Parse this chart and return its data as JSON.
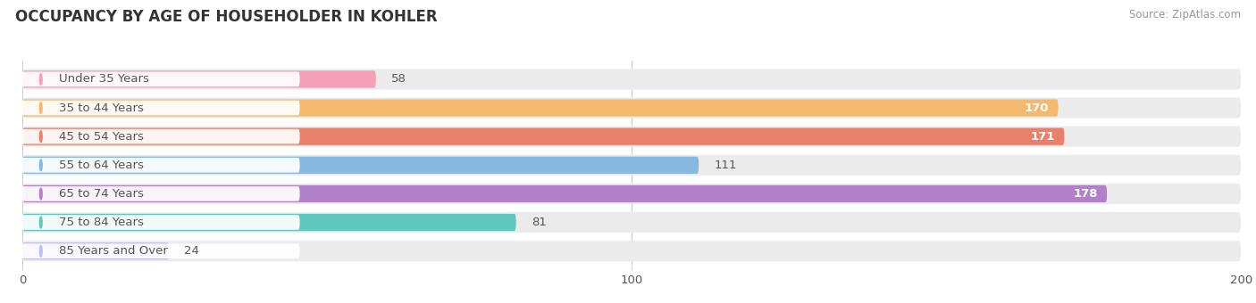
{
  "title": "OCCUPANCY BY AGE OF HOUSEHOLDER IN KOHLER",
  "source": "Source: ZipAtlas.com",
  "categories": [
    "Under 35 Years",
    "35 to 44 Years",
    "45 to 54 Years",
    "55 to 64 Years",
    "65 to 74 Years",
    "75 to 84 Years",
    "85 Years and Over"
  ],
  "values": [
    58,
    170,
    171,
    111,
    178,
    81,
    24
  ],
  "bar_colors": [
    "#f5a0b8",
    "#f5b96e",
    "#e8806a",
    "#87b8e0",
    "#b080c8",
    "#5ec8c0",
    "#c0c0f0"
  ],
  "bar_bg_color": "#ebebeb",
  "xlim": [
    0,
    200
  ],
  "xticks": [
    0,
    100,
    200
  ],
  "title_fontsize": 12,
  "label_fontsize": 9.5,
  "value_fontsize": 9.5,
  "bar_height": 0.72,
  "bg_color": "#ffffff",
  "grid_color": "#cccccc",
  "text_color": "#555555"
}
